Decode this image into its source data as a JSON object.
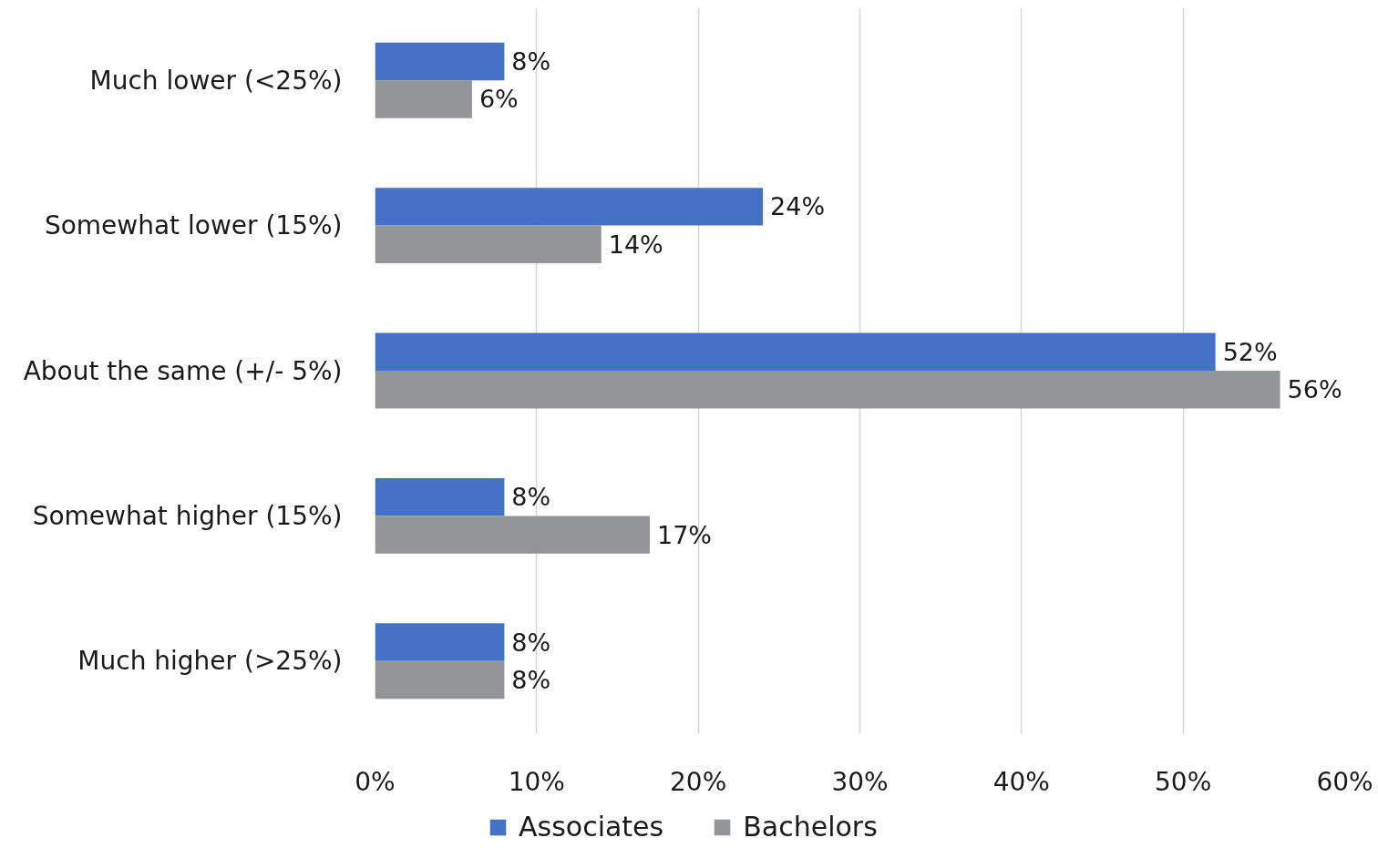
{
  "chart_data": {
    "type": "bar",
    "orientation": "horizontal",
    "categories": [
      "Much lower (<25%)",
      "Somewhat lower (15%)",
      "About the same (+/- 5%)",
      "Somewhat higher (15%)",
      "Much higher (>25%)"
    ],
    "series": [
      {
        "name": "Associates",
        "color": "#4472c4",
        "values": [
          8,
          24,
          52,
          8,
          8
        ],
        "value_labels": [
          "8%",
          "24%",
          "52%",
          "8%",
          "8%"
        ]
      },
      {
        "name": "Bachelors",
        "color": "#939598",
        "values": [
          6,
          14,
          56,
          17,
          8
        ],
        "value_labels": [
          "6%",
          "14%",
          "56%",
          "17%",
          "8%"
        ]
      }
    ],
    "xlim": [
      0,
      60
    ],
    "xticks": [
      {
        "value": 0,
        "label": "0%"
      },
      {
        "value": 10,
        "label": "10%"
      },
      {
        "value": 20,
        "label": "20%"
      },
      {
        "value": 30,
        "label": "30%"
      },
      {
        "value": 40,
        "label": "40%"
      },
      {
        "value": 50,
        "label": "50%"
      },
      {
        "value": 60,
        "label": "60%"
      }
    ],
    "grid": "x",
    "legend": "bottom"
  }
}
